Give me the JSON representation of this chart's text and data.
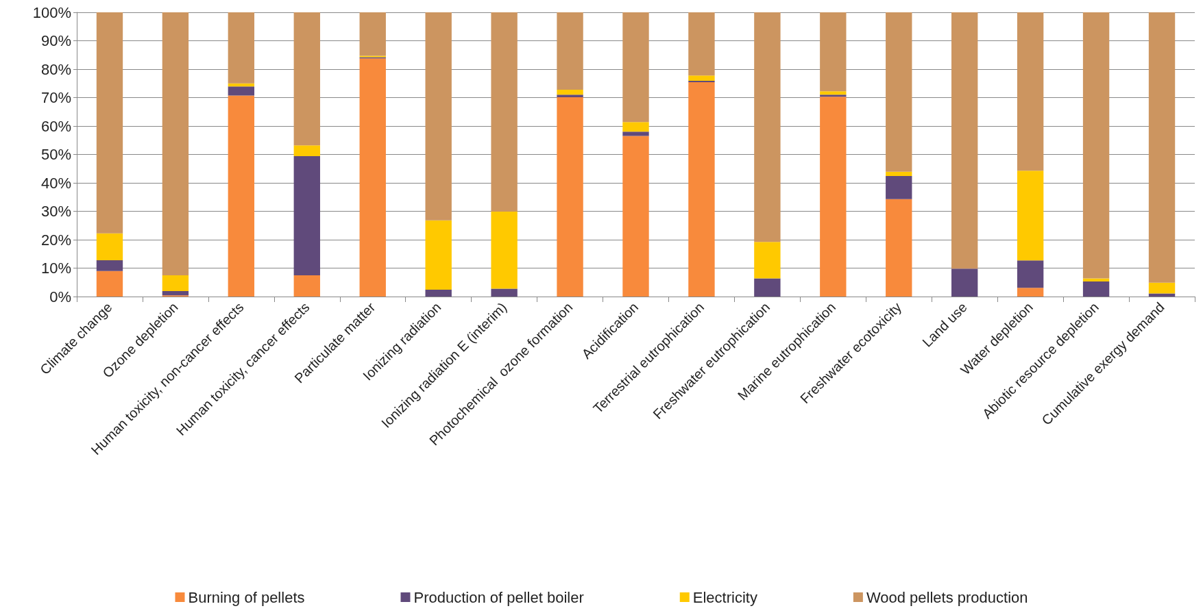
{
  "chart_data": {
    "type": "bar",
    "stacked": true,
    "grid": "y",
    "legend": "bottom",
    "categories": [
      "Climate change",
      "Ozone depletion",
      "Human toxicity, non-cancer effects",
      "Human toxicity, cancer effects",
      "Particulate matter",
      "Ionizing radiation",
      "Ionizing radiation E (interim)",
      "Photochemical  ozone formation",
      "Acidification",
      "Terrestrial eutrophication",
      "Freshwater eutrophication",
      "Marine eutrophication",
      "Freshwater ecotoxicity",
      "Land use",
      "Water depletion",
      "Abiotic resource depletion",
      "Cumulative exergy demand"
    ],
    "ylim": [
      0,
      100
    ],
    "yticks": [
      {
        "value": 0,
        "label": "0%"
      },
      {
        "value": 10,
        "label": "10%"
      },
      {
        "value": 20,
        "label": "20%"
      },
      {
        "value": 30,
        "label": "30%"
      },
      {
        "value": 40,
        "label": "40%"
      },
      {
        "value": 50,
        "label": "50%"
      },
      {
        "value": 60,
        "label": "60%"
      },
      {
        "value": 70,
        "label": "70%"
      },
      {
        "value": 80,
        "label": "80%"
      },
      {
        "value": 90,
        "label": "90%"
      },
      {
        "value": 100,
        "label": "100%"
      }
    ],
    "series": [
      {
        "name": "Burning of pellets",
        "color": "#f88a3c",
        "values": [
          9.0,
          0.4,
          70.7,
          7.5,
          83.8,
          0,
          0,
          70.1,
          56.5,
          75.4,
          0,
          70.3,
          34.3,
          0,
          3.1,
          0,
          0
        ]
      },
      {
        "name": "Production of pellet boiler",
        "color": "#604a7b",
        "values": [
          3.8,
          1.5,
          3.2,
          41.9,
          0.4,
          2.4,
          2.8,
          0.9,
          1.5,
          0.5,
          6.4,
          0.7,
          8.1,
          9.8,
          9.6,
          5.3,
          1.1
        ]
      },
      {
        "name": "Electricity",
        "color": "#ffc900",
        "values": [
          9.4,
          5.6,
          1.1,
          3.8,
          0.5,
          24.4,
          27.1,
          1.8,
          3.4,
          1.9,
          12.8,
          1.2,
          1.5,
          0,
          31.6,
          1.1,
          3.8
        ]
      },
      {
        "name": "Wood pellets production",
        "color": "#cc9560",
        "values": [
          77.8,
          92.5,
          25.0,
          46.8,
          15.3,
          73.2,
          70.1,
          27.2,
          38.6,
          22.2,
          80.8,
          27.8,
          56.1,
          90.2,
          55.7,
          93.6,
          95.1
        ]
      }
    ]
  }
}
